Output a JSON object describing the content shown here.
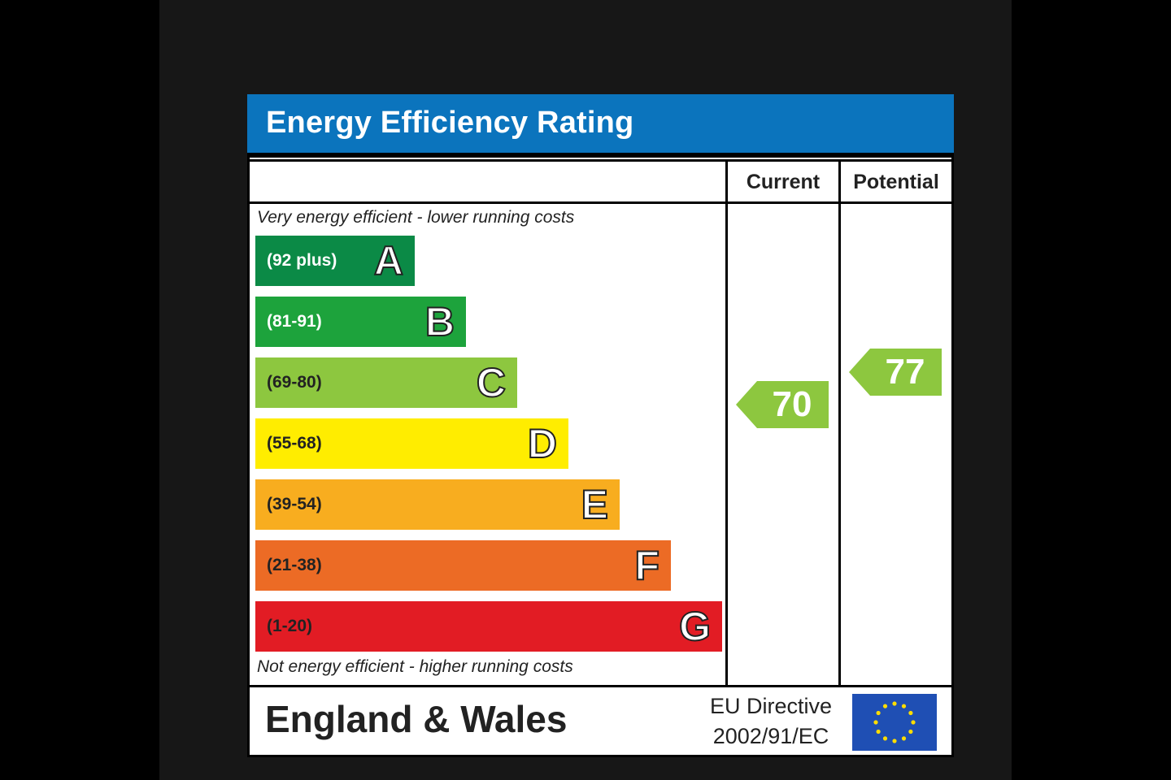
{
  "header": {
    "title": "Energy Efficiency Rating"
  },
  "columns": {
    "current": "Current",
    "potential": "Potential"
  },
  "notes": {
    "top": "Very energy efficient - lower running costs",
    "bottom": "Not energy efficient - higher running costs"
  },
  "bands": [
    {
      "range": "(92 plus)",
      "letter": "A",
      "color": "#0b8a46",
      "text_color": "#ffffff"
    },
    {
      "range": "(81-91)",
      "letter": "B",
      "color": "#1da33c",
      "text_color": "#ffffff"
    },
    {
      "range": "(69-80)",
      "letter": "C",
      "color": "#8dc73f",
      "text_color": "#222222"
    },
    {
      "range": "(55-68)",
      "letter": "D",
      "color": "#ffed00",
      "text_color": "#222222"
    },
    {
      "range": "(39-54)",
      "letter": "E",
      "color": "#f8ad1f",
      "text_color": "#222222"
    },
    {
      "range": "(21-38)",
      "letter": "F",
      "color": "#ec6b25",
      "text_color": "#222222"
    },
    {
      "range": "(1-20)",
      "letter": "G",
      "color": "#e21c24",
      "text_color": "#222222"
    }
  ],
  "ratings": {
    "current": {
      "value": "70",
      "band": "C",
      "color": "#8dc73f"
    },
    "potential": {
      "value": "77",
      "band": "C",
      "color": "#8dc73f"
    }
  },
  "footer": {
    "region": "England & Wales",
    "directive_line1": "EU Directive",
    "directive_line2": "2002/91/EC"
  }
}
